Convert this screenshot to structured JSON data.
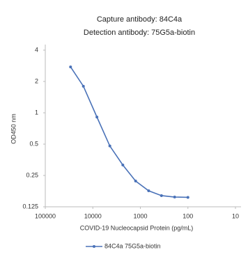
{
  "chart_data": {
    "type": "line",
    "title": "Capture antibody: 84C4a",
    "subtitle": "Detection antibody: 75G5a-biotin",
    "x_label": "COVID-19 Nucleocapsid Protein (pg/mL)",
    "y_label": "OD450 nm",
    "x": [
      29400,
      15800,
      8200,
      4390,
      2340,
      1260,
      670,
      360,
      190,
      100
    ],
    "series": [
      {
        "name": "84C4a 75G5a-biotin",
        "color": "#4a72b8",
        "values": [
          2.76,
          1.8,
          0.91,
          0.48,
          0.315,
          0.221,
          0.178,
          0.16,
          0.155,
          0.154
        ]
      }
    ],
    "xlim": [
      100000,
      10
    ],
    "xticks": [
      100000,
      10000,
      1000,
      100,
      10
    ],
    "xlog": true,
    "ylim": [
      0.125,
      4
    ],
    "yticks": [
      0.125,
      0.25,
      0.5,
      1,
      2,
      4
    ],
    "ylog": true,
    "grid": false,
    "legend": "bottom"
  }
}
